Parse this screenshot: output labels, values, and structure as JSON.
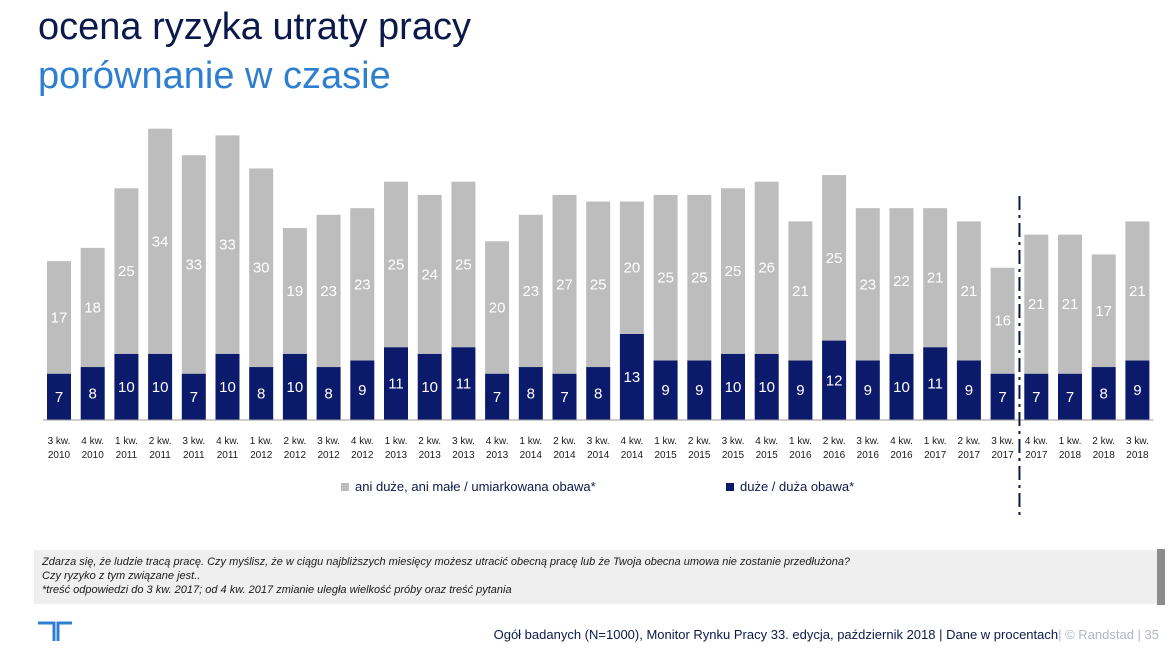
{
  "header": {
    "title": "ocena ryzyka utraty pracy",
    "subtitle": "porównanie w czasie"
  },
  "colors": {
    "grey_series": "#bdbdbd",
    "navy_series": "#0b1a6a",
    "title_dark": "#0b1a4a",
    "title_blue": "#2f7fd1"
  },
  "chart_data": {
    "type": "bar",
    "stacked": true,
    "categories": [
      [
        "3 kw.",
        "2010"
      ],
      [
        "4 kw.",
        "2010"
      ],
      [
        "1 kw.",
        "2011"
      ],
      [
        "2 kw.",
        "2011"
      ],
      [
        "3 kw.",
        "2011"
      ],
      [
        "4 kw.",
        "2011"
      ],
      [
        "1 kw.",
        "2012"
      ],
      [
        "2 kw.",
        "2012"
      ],
      [
        "3 kw.",
        "2012"
      ],
      [
        "4 kw.",
        "2012"
      ],
      [
        "1 kw.",
        "2013"
      ],
      [
        "2 kw.",
        "2013"
      ],
      [
        "3 kw.",
        "2013"
      ],
      [
        "4 kw.",
        "2013"
      ],
      [
        "1 kw.",
        "2014"
      ],
      [
        "2 kw.",
        "2014"
      ],
      [
        "3 kw.",
        "2014"
      ],
      [
        "4 kw.",
        "2014"
      ],
      [
        "1 kw.",
        "2015"
      ],
      [
        "2 kw.",
        "2015"
      ],
      [
        "3 kw.",
        "2015"
      ],
      [
        "4 kw.",
        "2015"
      ],
      [
        "1 kw.",
        "2016"
      ],
      [
        "2 kw.",
        "2016"
      ],
      [
        "3 kw.",
        "2016"
      ],
      [
        "4 kw.",
        "2016"
      ],
      [
        "1 kw.",
        "2017"
      ],
      [
        "2 kw.",
        "2017"
      ],
      [
        "3 kw.",
        "2017"
      ],
      [
        "4 kw.",
        "2017"
      ],
      [
        "1 kw.",
        "2018"
      ],
      [
        "2 kw.",
        "2018"
      ],
      [
        "3 kw.",
        "2018"
      ]
    ],
    "series": [
      {
        "name": "duże / duża obawa*",
        "values": [
          7,
          8,
          10,
          10,
          7,
          10,
          8,
          10,
          8,
          9,
          11,
          10,
          11,
          7,
          8,
          7,
          8,
          13,
          9,
          9,
          10,
          10,
          9,
          12,
          9,
          10,
          11,
          9,
          7,
          7,
          7,
          8,
          9
        ]
      },
      {
        "name": "ani duże, ani małe / umiarkowana obawa*",
        "values": [
          17,
          18,
          25,
          34,
          33,
          33,
          30,
          19,
          23,
          23,
          25,
          24,
          25,
          20,
          23,
          27,
          25,
          20,
          25,
          25,
          25,
          26,
          21,
          25,
          23,
          22,
          21,
          21,
          16,
          21,
          21,
          17,
          21
        ]
      }
    ],
    "legend": [
      {
        "label": "ani duże, ani małe / umiarkowana obawa*"
      },
      {
        "label": "duże / duża obawa*"
      }
    ],
    "annotation": "dashed divider between 3 kw. 2017 and 4 kw. 2017",
    "ylim": [
      0,
      45
    ],
    "grid": false
  },
  "note": {
    "line1": "Zdarza się, że ludzie tracą pracę. Czy myślisz, że w ciągu najbliższych miesięcy możesz utracić obecną pracę lub że Twoja obecna umowa nie zostanie przedłużona?",
    "line2": "Czy ryzyko z tym związane jest..",
    "line3": "*treść odpowiedzi do 3 kw. 2017; od 4 kw. 2017 zmianie uległa wielkość próby oraz treść pytania"
  },
  "footer": {
    "source": "Ogół badanych (N=1000), Monitor Rynku Pracy 33. edycja, październik 2018 | Dane w procentach",
    "brand": "| © Randstad | 35"
  }
}
